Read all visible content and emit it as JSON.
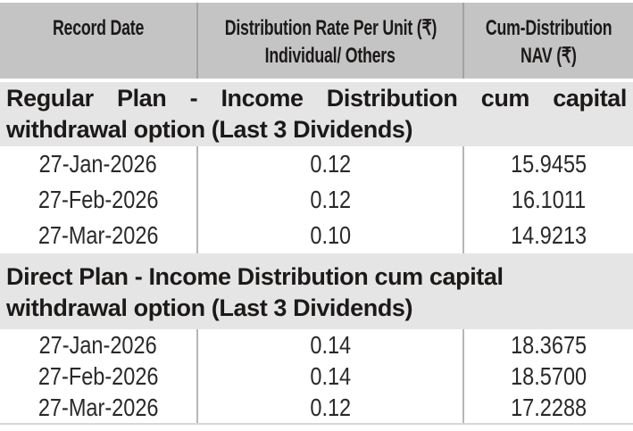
{
  "table": {
    "columns": [
      {
        "line1": "Record Date",
        "line2": ""
      },
      {
        "line1": "Distribution Rate Per Unit (₹)",
        "line2": "Individual/ Others"
      },
      {
        "line1": "Cum-Distribution",
        "line2": "NAV (₹)"
      }
    ],
    "sections": [
      {
        "title_lines": [
          "Regular Plan - Income Distribution cum capital",
          "withdrawal option (Last 3 Dividends)"
        ],
        "rows": [
          {
            "record_date": "27-Jan-2026",
            "rate_per_unit": "0.12",
            "cum_nav": "15.9455"
          },
          {
            "record_date": "27-Feb-2026",
            "rate_per_unit": "0.12",
            "cum_nav": "16.1011"
          },
          {
            "record_date": "27-Mar-2026",
            "rate_per_unit": "0.10",
            "cum_nav": "14.9213"
          }
        ]
      },
      {
        "title_lines": [
          "Direct Plan - Income Distribution cum capital",
          "withdrawal option (Last 3 Dividends)"
        ],
        "rows": [
          {
            "record_date": "27-Jan-2026",
            "rate_per_unit": "0.14",
            "cum_nav": "18.3675"
          },
          {
            "record_date": "27-Feb-2026",
            "rate_per_unit": "0.14",
            "cum_nav": "18.5700"
          },
          {
            "record_date": "27-Mar-2026",
            "rate_per_unit": "0.12",
            "cum_nav": "17.2288"
          }
        ]
      }
    ]
  },
  "currency_symbol": "₹",
  "colors": {
    "header_bg": "#c5c4c4",
    "section_bg": "#e6e5e5",
    "divider_dark": "#a3a2a2",
    "divider_light": "#b7b6b6",
    "text": "#1c1a19",
    "data_text": "#2b2a29",
    "row_bg": "#ffffff"
  }
}
